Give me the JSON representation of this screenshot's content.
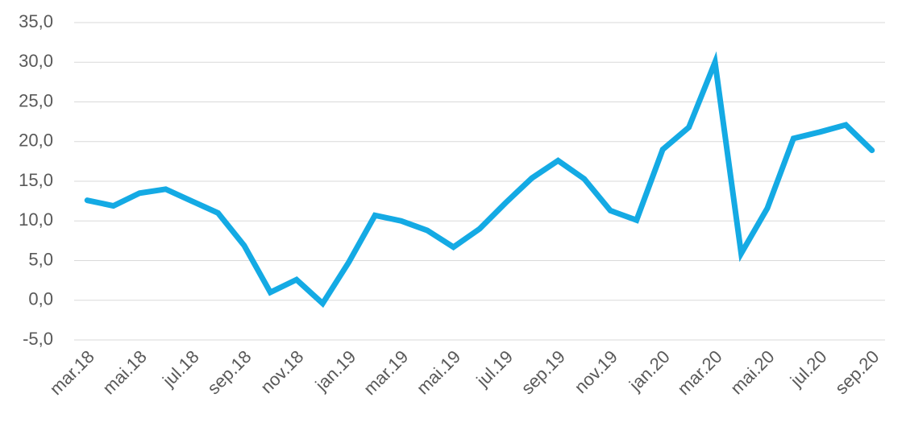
{
  "chart_data": {
    "type": "line",
    "categories": [
      "mar.18",
      null,
      "mai.18",
      null,
      "jul.18",
      null,
      "sep.18",
      null,
      "nov.18",
      null,
      "jan.19",
      null,
      "mar.19",
      null,
      "mai.19",
      null,
      "jul.19",
      null,
      "sep.19",
      null,
      "nov.19",
      null,
      "jan.20",
      null,
      "mar.20",
      null,
      "mai.20",
      null,
      "jul.20",
      null,
      "sep.20"
    ],
    "values": [
      12.6,
      11.9,
      13.5,
      14.0,
      12.5,
      11.0,
      6.9,
      1.0,
      2.6,
      -0.4,
      4.8,
      10.7,
      10.0,
      8.8,
      6.7,
      9.0,
      12.3,
      15.4,
      17.6,
      15.3,
      11.3,
      10.1,
      19.0,
      21.8,
      30.0,
      5.9,
      11.6,
      20.4,
      21.2,
      22.1,
      18.9
    ],
    "color": "#14aae4",
    "ylim": [
      -5,
      35
    ],
    "yticks": [
      {
        "value": -5,
        "label": "-5,0"
      },
      {
        "value": 0,
        "label": "0,0"
      },
      {
        "value": 5,
        "label": "5,0"
      },
      {
        "value": 10,
        "label": "10,0"
      },
      {
        "value": 15,
        "label": "15,0"
      },
      {
        "value": 20,
        "label": "20,0"
      },
      {
        "value": 25,
        "label": "25,0"
      },
      {
        "value": 30,
        "label": "30,0"
      },
      {
        "value": 35,
        "label": "35,0"
      }
    ],
    "grid": true
  }
}
